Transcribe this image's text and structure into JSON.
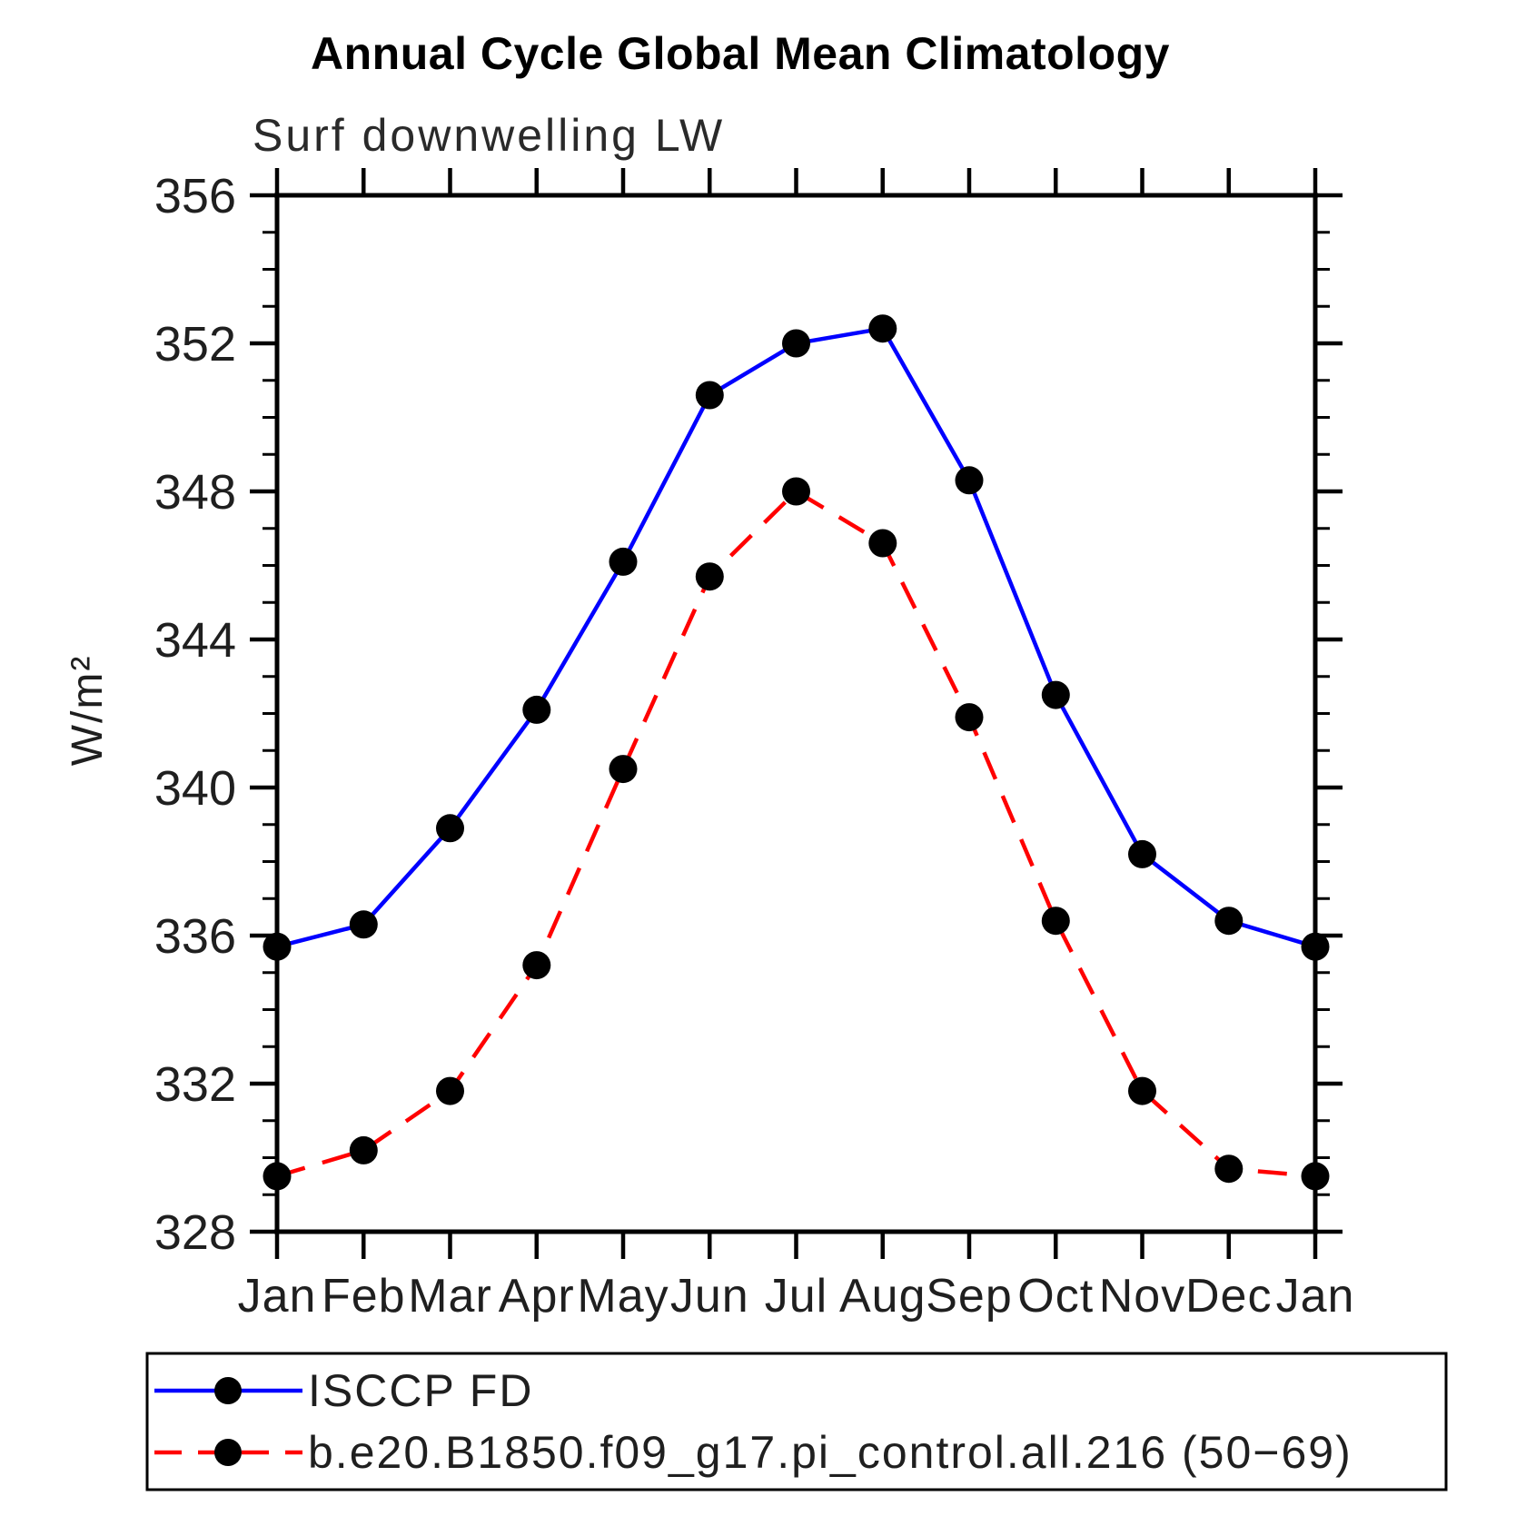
{
  "chart_data": {
    "type": "line",
    "title": "Annual Cycle Global Mean Climatology",
    "subtitle": "Surf downwelling LW",
    "ylabel": "W/m²",
    "xlabel": "",
    "categories": [
      "Jan",
      "Feb",
      "Mar",
      "Apr",
      "May",
      "Jun",
      "Jul",
      "Aug",
      "Sep",
      "Oct",
      "Nov",
      "Dec",
      "Jan"
    ],
    "ylim": [
      328,
      356
    ],
    "y_major_ticks": [
      328,
      332,
      336,
      340,
      344,
      348,
      352,
      356
    ],
    "y_minor_step": 1,
    "grid": false,
    "legend_position": "bottom",
    "marker_color": "#000000",
    "series": [
      {
        "name": "ISCCP FD",
        "color": "#0000ff",
        "line_style": "solid",
        "marker": "circle",
        "values": [
          335.7,
          336.3,
          338.9,
          342.1,
          346.1,
          350.6,
          352.0,
          352.4,
          348.3,
          342.5,
          338.2,
          336.4,
          335.7
        ]
      },
      {
        "name": "b.e20.B1850.f09_g17.pi_control.all.216 (50−69)",
        "color": "#ff0000",
        "line_style": "dashed",
        "marker": "circle",
        "values": [
          329.5,
          330.2,
          331.8,
          335.2,
          340.5,
          345.7,
          348.0,
          346.6,
          341.9,
          336.4,
          331.8,
          329.7,
          329.5
        ]
      }
    ]
  }
}
